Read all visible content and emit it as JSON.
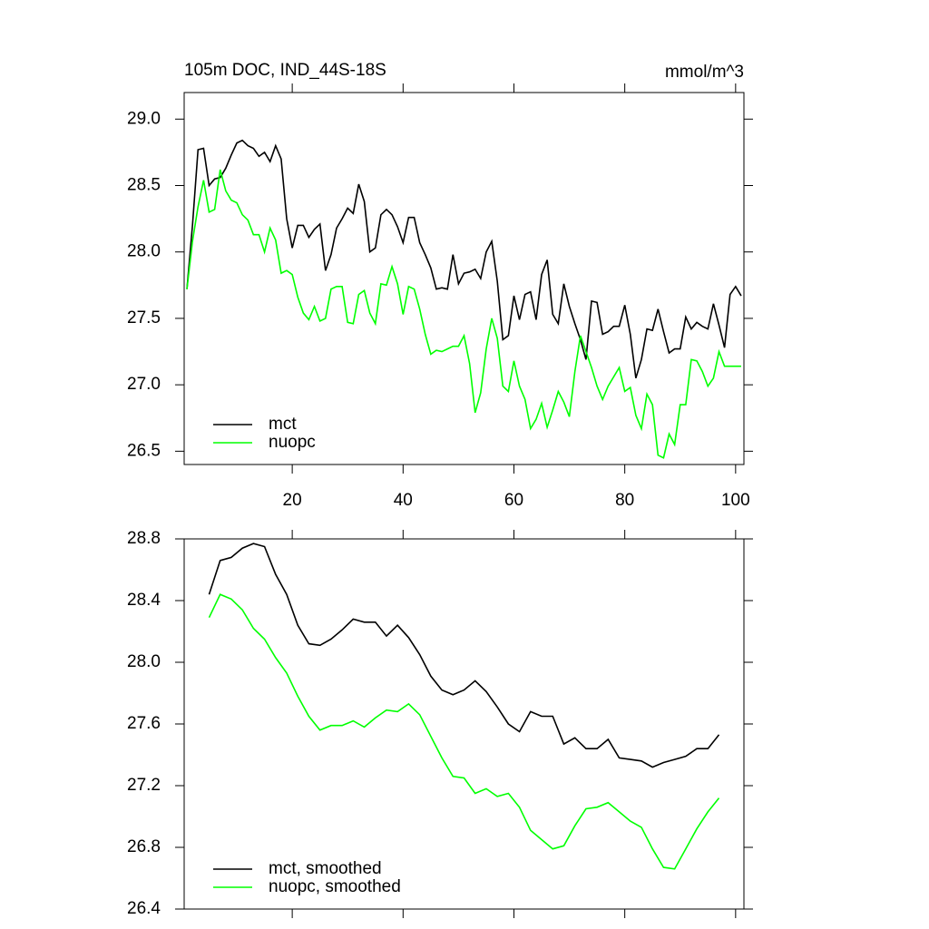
{
  "chart_data": [
    {
      "type": "line",
      "title": "105m DOC, IND_44S-18S",
      "units": "mmol/m^3",
      "x": [
        1,
        2,
        3,
        4,
        5,
        6,
        7,
        8,
        9,
        10,
        11,
        12,
        13,
        14,
        15,
        16,
        17,
        18,
        19,
        20,
        21,
        22,
        23,
        24,
        25,
        26,
        27,
        28,
        29,
        30,
        31,
        32,
        33,
        34,
        35,
        36,
        37,
        38,
        39,
        40,
        41,
        42,
        43,
        44,
        45,
        46,
        47,
        48,
        49,
        50,
        51,
        52,
        53,
        54,
        55,
        56,
        57,
        58,
        59,
        60,
        61,
        62,
        63,
        64,
        65,
        66,
        67,
        68,
        69,
        70,
        71,
        72,
        73,
        74,
        75,
        76,
        77,
        78,
        79,
        80,
        81,
        82,
        83,
        84,
        85,
        86,
        87,
        88,
        89,
        90,
        91,
        92,
        93,
        94,
        95,
        96,
        97,
        98,
        99,
        100,
        101
      ],
      "series": [
        {
          "name": "mct",
          "color": "#000000",
          "values": [
            27.72,
            28.2,
            28.77,
            28.78,
            28.5,
            28.55,
            28.56,
            28.63,
            28.73,
            28.82,
            28.84,
            28.8,
            28.78,
            28.72,
            28.75,
            28.68,
            28.8,
            28.7,
            28.25,
            28.03,
            28.2,
            28.2,
            28.11,
            28.17,
            28.21,
            27.86,
            27.98,
            28.18,
            28.25,
            28.33,
            28.29,
            28.51,
            28.38,
            28.0,
            28.03,
            28.28,
            28.32,
            28.28,
            28.19,
            28.07,
            28.26,
            28.26,
            28.07,
            27.98,
            27.88,
            27.72,
            27.73,
            27.72,
            27.98,
            27.76,
            27.84,
            27.85,
            27.87,
            27.8,
            28.0,
            28.08,
            27.78,
            27.34,
            27.37,
            27.67,
            27.49,
            27.68,
            27.7,
            27.49,
            27.83,
            27.94,
            27.53,
            27.46,
            27.76,
            27.59,
            27.46,
            27.34,
            27.19,
            27.63,
            27.62,
            27.38,
            27.4,
            27.44,
            27.44,
            27.6,
            27.38,
            27.05,
            27.19,
            27.42,
            27.41,
            27.57,
            27.4,
            27.24,
            27.27,
            27.27,
            27.51,
            27.42,
            27.47,
            27.44,
            27.42,
            27.61,
            27.45,
            27.28,
            27.68,
            27.74,
            27.67
          ]
        },
        {
          "name": "nuopc",
          "color": "#00ff00",
          "values": [
            27.72,
            28.08,
            28.34,
            28.54,
            28.3,
            28.32,
            28.62,
            28.46,
            28.39,
            28.37,
            28.28,
            28.24,
            28.13,
            28.13,
            28.0,
            28.18,
            28.09,
            27.84,
            27.86,
            27.83,
            27.66,
            27.54,
            27.49,
            27.59,
            27.48,
            27.5,
            27.72,
            27.74,
            27.74,
            27.47,
            27.46,
            27.68,
            27.71,
            27.54,
            27.46,
            27.76,
            27.75,
            27.89,
            27.76,
            27.53,
            27.74,
            27.72,
            27.57,
            27.38,
            27.23,
            27.26,
            27.25,
            27.27,
            27.29,
            27.29,
            27.37,
            27.16,
            26.79,
            26.94,
            27.27,
            27.5,
            27.35,
            26.99,
            26.95,
            27.18,
            26.99,
            26.89,
            26.67,
            26.74,
            26.86,
            26.68,
            26.81,
            26.95,
            26.87,
            26.76,
            27.1,
            27.37,
            27.25,
            27.13,
            26.99,
            26.89,
            26.99,
            27.06,
            27.13,
            26.95,
            26.98,
            26.77,
            26.67,
            26.93,
            26.85,
            26.47,
            26.45,
            26.63,
            26.55,
            26.85,
            26.85,
            27.19,
            27.18,
            27.1,
            26.99,
            27.05,
            27.25,
            27.14,
            27.14,
            27.14,
            27.14
          ]
        }
      ],
      "xlim": [
        0.5,
        101.5
      ],
      "xticks": [
        20,
        40,
        60,
        80,
        100
      ],
      "xtick_labels": true,
      "ylim": [
        26.4,
        29.2
      ],
      "yticks": [
        {
          "value": 26.5,
          "label": "26.5"
        },
        {
          "value": 27,
          "label": "27.0"
        },
        {
          "value": 27.5,
          "label": "27.5"
        },
        {
          "value": 28,
          "label": "28.0"
        },
        {
          "value": 28.5,
          "label": "28.5"
        },
        {
          "value": 29,
          "label": "29.0"
        }
      ],
      "legend": "lower left"
    },
    {
      "type": "line",
      "x": [
        5,
        7,
        9,
        11,
        13,
        15,
        17,
        19,
        21,
        23,
        25,
        27,
        29,
        31,
        33,
        35,
        37,
        39,
        41,
        43,
        45,
        47,
        49,
        51,
        53,
        55,
        57,
        59,
        61,
        63,
        65,
        67,
        69,
        71,
        73,
        75,
        77,
        79,
        81,
        83,
        85,
        87,
        89,
        91,
        93,
        95,
        97
      ],
      "series": [
        {
          "name": "mct, smoothed",
          "color": "#000000",
          "values": [
            28.44,
            28.66,
            28.68,
            28.74,
            28.77,
            28.75,
            28.57,
            28.44,
            28.24,
            28.12,
            28.11,
            28.15,
            28.21,
            28.28,
            28.26,
            28.26,
            28.17,
            28.24,
            28.16,
            28.05,
            27.91,
            27.82,
            27.79,
            27.82,
            27.88,
            27.81,
            27.71,
            27.6,
            27.55,
            27.68,
            27.65,
            27.65,
            27.47,
            27.51,
            27.44,
            27.44,
            27.5,
            27.38,
            27.37,
            27.36,
            27.32,
            27.35,
            27.37,
            27.39,
            27.44,
            27.44,
            27.53
          ]
        },
        {
          "name": "nuopc, smoothed",
          "color": "#00ff00",
          "values": [
            28.29,
            28.44,
            28.41,
            28.34,
            28.22,
            28.15,
            28.03,
            27.93,
            27.78,
            27.65,
            27.56,
            27.59,
            27.59,
            27.62,
            27.58,
            27.64,
            27.69,
            27.68,
            27.73,
            27.66,
            27.52,
            27.38,
            27.26,
            27.25,
            27.15,
            27.18,
            27.13,
            27.15,
            27.06,
            26.91,
            26.85,
            26.79,
            26.81,
            26.94,
            27.05,
            27.06,
            27.09,
            27.03,
            26.97,
            26.93,
            26.79,
            26.67,
            26.66,
            26.79,
            26.92,
            27.03,
            27.12
          ]
        }
      ],
      "xlim": [
        0.5,
        101.5
      ],
      "xticks": [
        20,
        40,
        60,
        80,
        100
      ],
      "xtick_labels": false,
      "ylim": [
        26.4,
        28.8
      ],
      "yticks": [
        {
          "value": 26.4,
          "label": "26.4"
        },
        {
          "value": 26.8,
          "label": "26.8"
        },
        {
          "value": 27.2,
          "label": "27.2"
        },
        {
          "value": 27.6,
          "label": "27.6"
        },
        {
          "value": 28,
          "label": "28.0"
        },
        {
          "value": 28.4,
          "label": "28.4"
        },
        {
          "value": 28.8,
          "label": "28.8"
        }
      ],
      "legend": "lower left"
    }
  ]
}
